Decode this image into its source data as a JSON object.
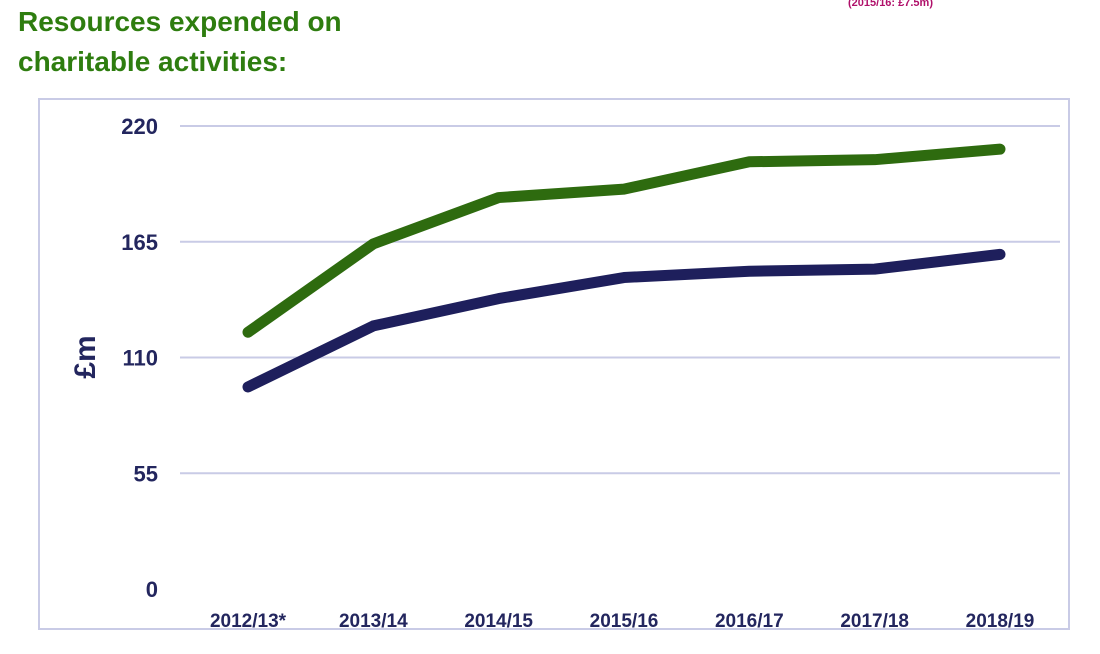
{
  "title_lines": [
    "Resources expended on",
    "charitable activities:"
  ],
  "top_note": "(2015/16: £7.5m)",
  "colors": {
    "title": "#2e7d0f",
    "text": "#23265e",
    "grid": "#c9cbe6",
    "note": "#b0106a"
  },
  "chart_data": {
    "type": "line",
    "title": "Resources expended on charitable activities:",
    "xlabel": "",
    "ylabel": "£m",
    "ylim": [
      0,
      220
    ],
    "yticks": [
      0,
      55,
      110,
      165,
      220
    ],
    "grid": true,
    "legend": "none",
    "categories": [
      "2012/13*",
      "2013/14",
      "2014/15",
      "2015/16",
      "2016/17",
      "2017/18",
      "2018/19"
    ],
    "series": [
      {
        "color": "#2e6b0f",
        "values": [
          122,
          164,
          186,
          190,
          203,
          204,
          209
        ]
      },
      {
        "color": "#1e1f5c",
        "values": [
          96,
          125,
          138,
          148,
          151,
          152,
          159
        ]
      }
    ]
  }
}
